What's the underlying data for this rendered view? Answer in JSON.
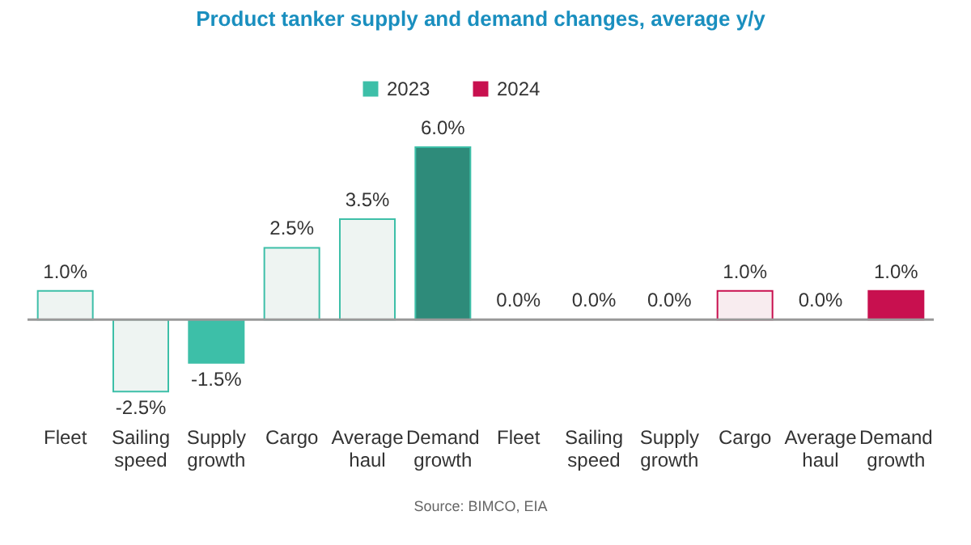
{
  "chart_data": {
    "type": "bar",
    "title": "Product tanker supply and demand changes, average y/y",
    "categories": [
      "Fleet",
      "Sailing speed",
      "Supply growth",
      "Cargo",
      "Average haul",
      "Demand growth",
      "Fleet",
      "Sailing speed",
      "Supply growth",
      "Cargo",
      "Average haul",
      "Demand growth"
    ],
    "series": [
      {
        "name": "2023",
        "color": "#3dbfa8",
        "values": [
          1.0,
          -2.5,
          -1.5,
          2.5,
          3.5,
          6.0,
          null,
          null,
          null,
          null,
          null,
          null
        ],
        "colors": [
          "#eef4f2",
          "#eef4f2",
          "#3dbfa8",
          "#eef4f2",
          "#eef4f2",
          "#2e8b7a",
          null,
          null,
          null,
          null,
          null,
          null
        ],
        "value_labels": [
          "1.0%",
          "-2.5%",
          "-1.5%",
          "2.5%",
          "3.5%",
          "6.0%",
          null,
          null,
          null,
          null,
          null,
          null
        ]
      },
      {
        "name": "2024",
        "color": "#c8104f",
        "values": [
          null,
          null,
          null,
          null,
          null,
          null,
          0.0,
          0.0,
          0.0,
          1.0,
          0.0,
          1.0
        ],
        "colors": [
          null,
          null,
          null,
          null,
          null,
          null,
          "#f8ecef",
          "#f8ecef",
          "#f8ecef",
          "#f8ecef",
          "#f8ecef",
          "#c8104f"
        ],
        "value_labels": [
          null,
          null,
          null,
          null,
          null,
          null,
          "0.0%",
          "0.0%",
          "0.0%",
          "1.0%",
          "0.0%",
          "1.0%"
        ]
      }
    ],
    "legend": "top",
    "grid": false,
    "annotations": [
      "Source: BIMCO, EIA"
    ]
  }
}
